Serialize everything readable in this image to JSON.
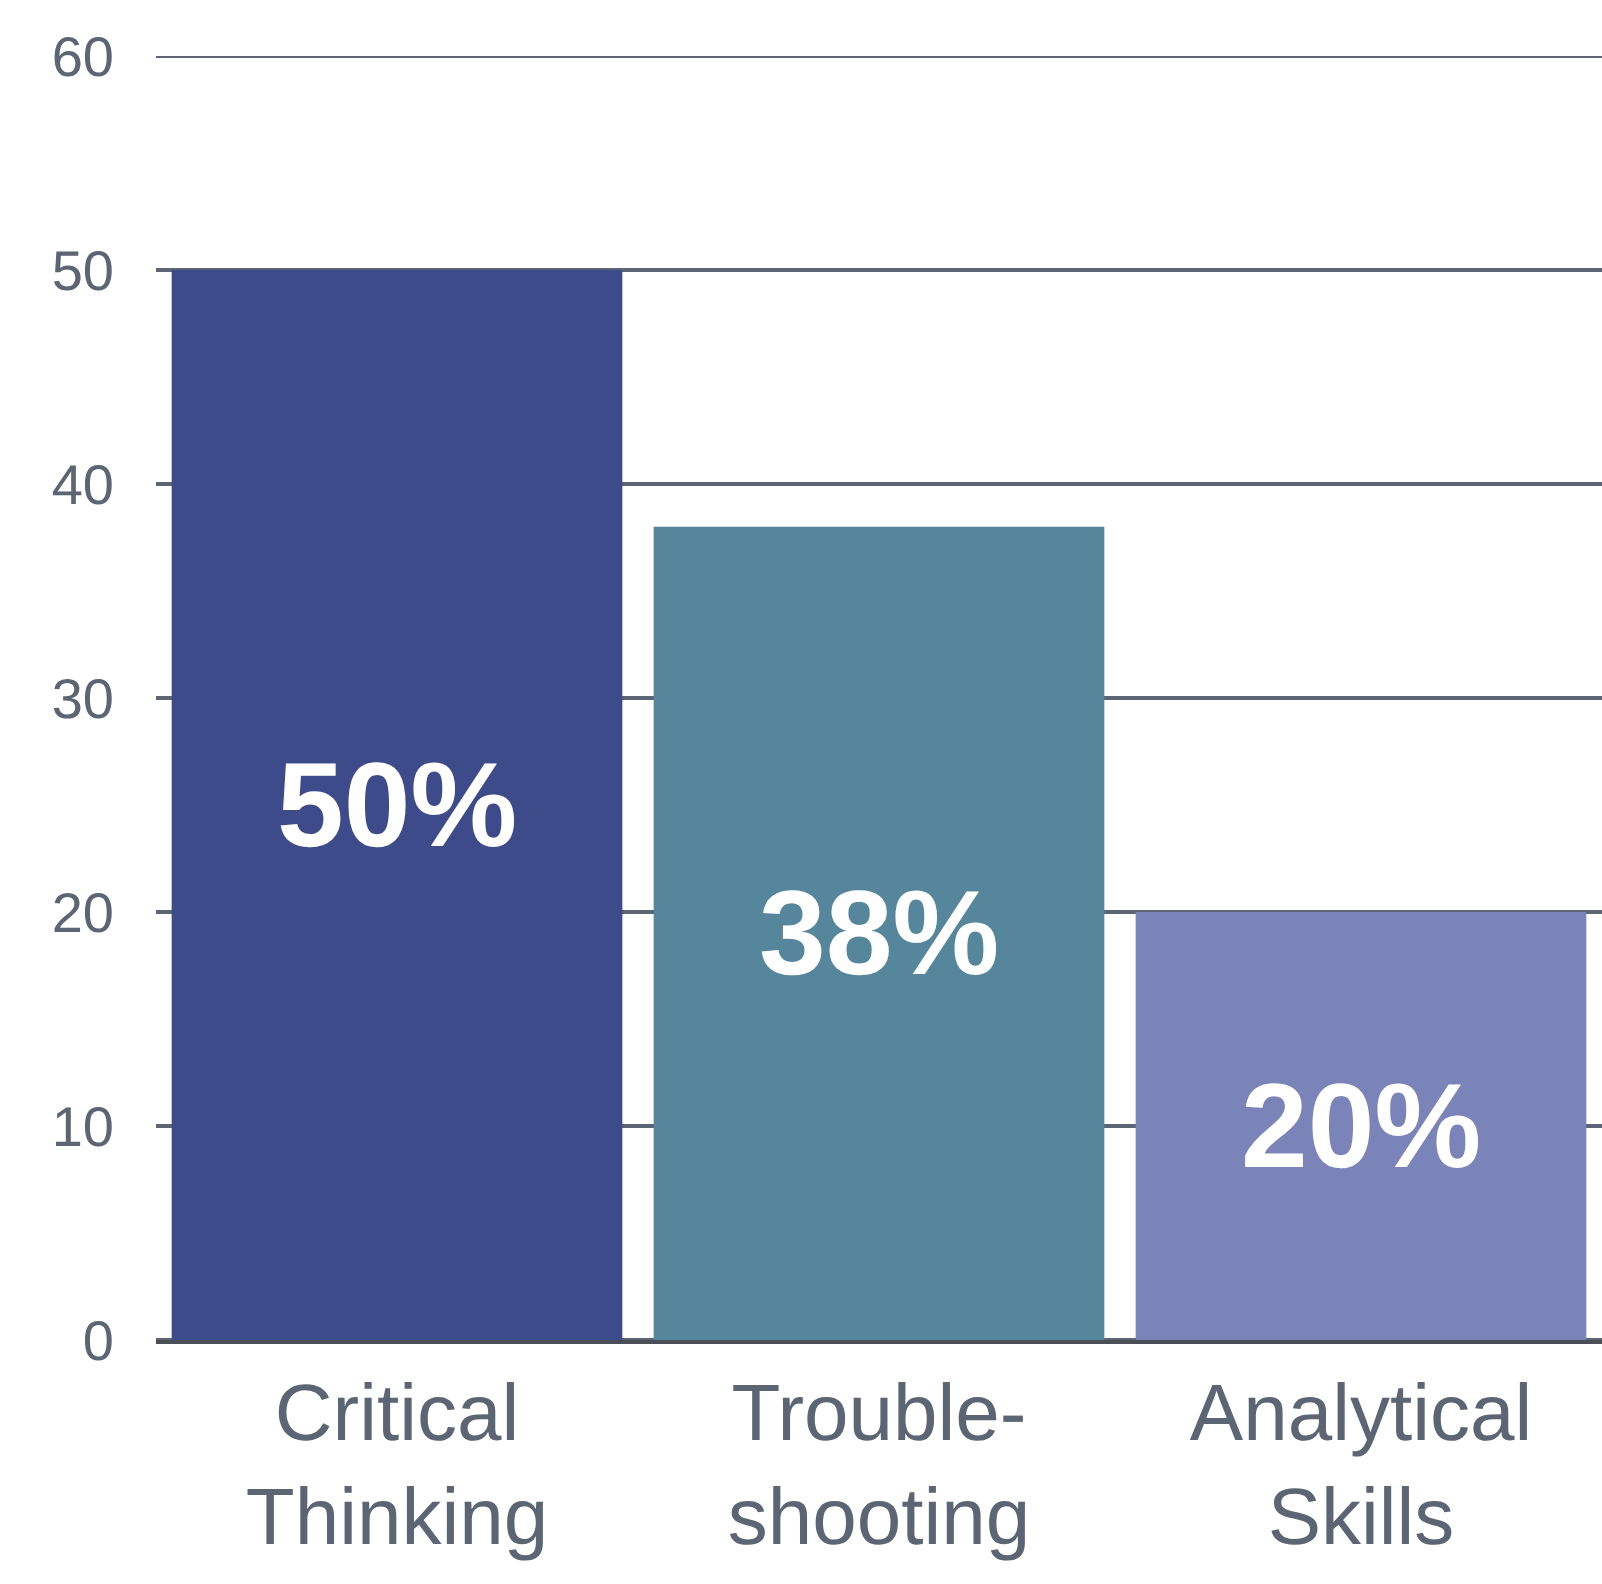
{
  "chart_data": {
    "type": "bar",
    "categories": [
      "Critical Thinking",
      "Trouble-shooting",
      "Analytical Skills"
    ],
    "values": [
      50,
      38,
      20
    ],
    "colors": [
      "#3d4b8a",
      "#55869c",
      "#7b84b8"
    ],
    "value_labels": [
      "50%",
      "38%",
      "20%"
    ],
    "ylim": [
      0,
      60
    ],
    "yticks": [
      0,
      10,
      20,
      30,
      40,
      50,
      60
    ],
    "grid": "y"
  }
}
